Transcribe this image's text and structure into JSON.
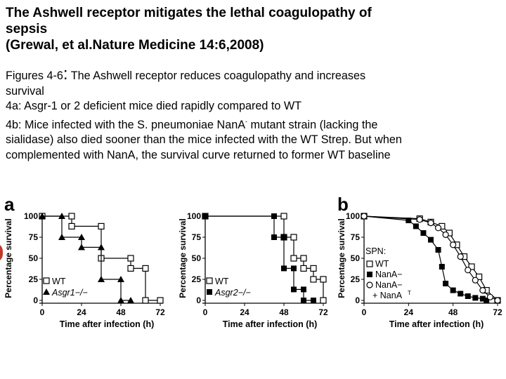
{
  "title": {
    "line1": "The Ashwell receptor mitigates the lethal coagulopathy of",
    "line2": "sepsis",
    "line3": "(Grewal, et al.Nature Medicine 14:6,2008)"
  },
  "body": {
    "fig_prefix": "Figures 4-6",
    "fig_colon": ":",
    "fig_rest": " The Ashwell receptor reduces coagulopathy and increases",
    "line2": "survival",
    "line3": "4a: Asgr-1 or 2 deficient mice died rapidly compared to WT",
    "line4_a": "4b: Mice infected with the S. pneumoniae NanA",
    "line4_sup": "-",
    "line4_b": " mutant strain (lacking the",
    "line5": "sialidase) also died sooner than the mice infected with the WT Strep. But when",
    "line6": "complemented with NanA, the survival curve returned to former WT baseline"
  },
  "colors": {
    "text": "#000000",
    "background": "#ffffff",
    "red_mark": "#c0392b"
  },
  "figure": {
    "panel_a_letter": "a",
    "panel_b_letter": "b",
    "ylabel": "Percentage survival",
    "xlabel": "Time after infection (h)",
    "legend_spn": "SPN:",
    "legend_wt": "WT",
    "legend_asgr1": "Asgr1−/−",
    "legend_asgr2": "Asgr2−/−",
    "legend_nana_minus": "NanA−",
    "legend_nana_comp1": "NanA−",
    "legend_nana_comp2": "+ NanA",
    "legend_nana_comp_sup": "T"
  },
  "chart_data": [
    {
      "type": "line",
      "title": "",
      "xlabel": "Time after infection (h)",
      "ylabel": "Percentage survival",
      "xticks": [
        0,
        24,
        48,
        72
      ],
      "yticks": [
        0,
        25,
        50,
        75,
        100
      ],
      "xlim": [
        0,
        72
      ],
      "ylim": [
        0,
        100
      ],
      "series": [
        {
          "name": "WT",
          "marker": "open-square",
          "x": [
            0,
            18,
            18,
            36,
            36,
            54,
            54,
            63,
            63,
            72
          ],
          "y": [
            100,
            100,
            88,
            88,
            50,
            50,
            38,
            38,
            0,
            0
          ]
        },
        {
          "name": "Asgr1−/−",
          "marker": "filled-triangle",
          "x": [
            0,
            12,
            12,
            24,
            24,
            36,
            36,
            48,
            48,
            54
          ],
          "y": [
            100,
            100,
            75,
            75,
            63,
            63,
            25,
            25,
            0,
            0
          ]
        }
      ]
    },
    {
      "type": "line",
      "title": "",
      "xlabel": "Time after infection (h)",
      "ylabel": "Percentage survival",
      "xticks": [
        0,
        24,
        48,
        72
      ],
      "yticks": [
        0,
        25,
        50,
        75,
        100
      ],
      "xlim": [
        0,
        72
      ],
      "ylim": [
        0,
        100
      ],
      "series": [
        {
          "name": "WT",
          "marker": "open-square",
          "x": [
            0,
            48,
            48,
            54,
            54,
            60,
            60,
            66,
            66,
            72,
            72
          ],
          "y": [
            100,
            100,
            75,
            75,
            50,
            50,
            38,
            38,
            25,
            25,
            0
          ]
        },
        {
          "name": "Asgr2−/−",
          "marker": "filled-square",
          "x": [
            0,
            42,
            42,
            48,
            48,
            54,
            54,
            60,
            60,
            66
          ],
          "y": [
            100,
            100,
            75,
            75,
            38,
            38,
            13,
            13,
            0,
            0
          ]
        }
      ]
    },
    {
      "type": "line",
      "title": "",
      "xlabel": "Time after infection (h)",
      "ylabel": "Percentage survival",
      "xticks": [
        0,
        24,
        48,
        72
      ],
      "yticks": [
        0,
        25,
        50,
        75,
        100
      ],
      "xlim": [
        0,
        72
      ],
      "ylim": [
        0,
        100
      ],
      "series": [
        {
          "name": "WT",
          "marker": "open-square",
          "x": [
            0,
            30,
            36,
            42,
            46,
            50,
            54,
            58,
            62,
            66,
            72
          ],
          "y": [
            100,
            97,
            93,
            88,
            80,
            66,
            52,
            40,
            28,
            12,
            0
          ]
        },
        {
          "name": "NanA−",
          "marker": "filled-square",
          "x": [
            0,
            24,
            28,
            32,
            36,
            40,
            42,
            44,
            48,
            52,
            56,
            60,
            64,
            66
          ],
          "y": [
            100,
            95,
            88,
            80,
            72,
            60,
            40,
            20,
            12,
            8,
            5,
            3,
            2,
            0
          ]
        },
        {
          "name": "NanA− + NanAT",
          "marker": "open-circle",
          "x": [
            0,
            30,
            36,
            40,
            44,
            48,
            52,
            56,
            60,
            64,
            68,
            72
          ],
          "y": [
            100,
            96,
            92,
            86,
            78,
            66,
            52,
            36,
            24,
            12,
            4,
            0
          ]
        }
      ]
    }
  ]
}
